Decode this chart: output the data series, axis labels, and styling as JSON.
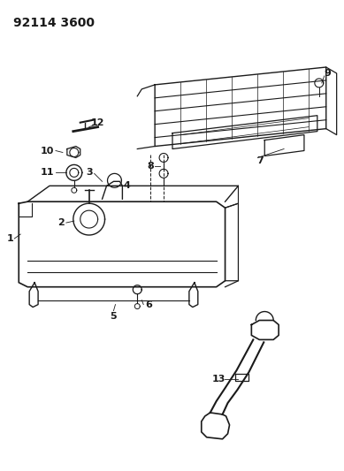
{
  "title": "92114 3600",
  "bg_color": "#ffffff",
  "line_color": "#1a1a1a",
  "title_fontsize": 10,
  "label_fontsize": 8,
  "figsize": [
    3.89,
    5.33
  ],
  "dpi": 100
}
